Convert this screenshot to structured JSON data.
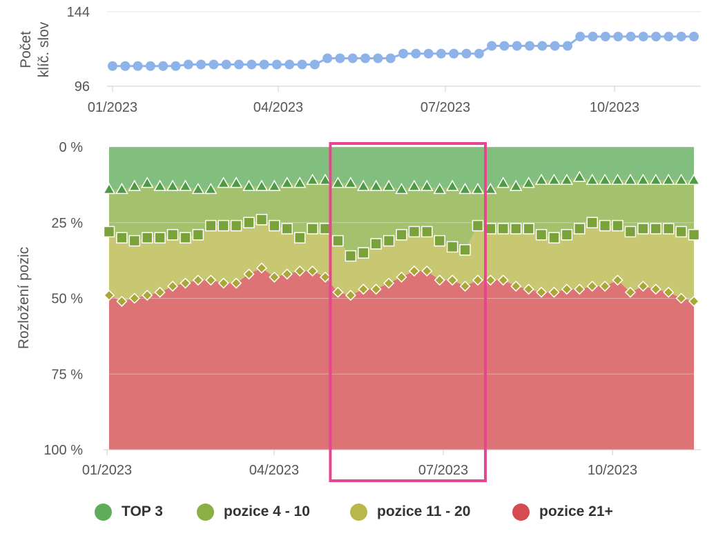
{
  "chart_data": [
    {
      "type": "line",
      "ylabel": [
        "Počet",
        "klíč. slov"
      ],
      "ylim": [
        96,
        144
      ],
      "yticks": [
        96,
        144
      ],
      "xticks": [
        "01/2023",
        "04/2023",
        "07/2023",
        "10/2023"
      ],
      "grid": true,
      "legend": "none",
      "series": [
        {
          "color": "#8db3e8",
          "values": [
            109,
            109,
            109,
            109,
            109,
            109,
            110,
            110,
            110,
            110,
            110,
            110,
            110,
            110,
            110,
            110,
            110,
            114,
            114,
            114,
            114,
            114,
            114,
            117,
            117,
            117,
            117,
            117,
            117,
            117,
            122,
            122,
            122,
            122,
            122,
            122,
            122,
            128,
            128,
            128,
            128,
            128,
            128,
            128,
            128,
            128,
            128
          ]
        }
      ]
    },
    {
      "type": "area",
      "stacked": true,
      "ylabel": "Rozložení pozic",
      "ylim": [
        0,
        100
      ],
      "yticks": [
        "0 %",
        "25 %",
        "50 %",
        "75 %",
        "100 %"
      ],
      "xticks": [
        "01/2023",
        "04/2023",
        "07/2023",
        "10/2023"
      ],
      "grid": true,
      "legend": "bottom-center",
      "highlight": {
        "from_index": 18,
        "to_index": 29,
        "color": "#e6458f"
      },
      "boundaries": [
        {
          "name": "TOP 3",
          "marker": "triangle",
          "values": [
            14,
            14,
            13,
            12,
            13,
            13,
            13,
            14,
            14,
            12,
            12,
            13,
            13,
            13,
            12,
            12,
            11,
            11,
            12,
            12,
            13,
            13,
            13,
            14,
            13,
            13,
            14,
            13,
            14,
            14,
            14,
            12,
            13,
            12,
            11,
            11,
            11,
            10,
            11,
            11,
            11,
            11,
            11,
            11,
            11,
            11,
            11
          ]
        },
        {
          "name": "pozice 4 - 10",
          "marker": "square",
          "values": [
            28,
            30,
            31,
            30,
            30,
            29,
            30,
            29,
            26,
            26,
            26,
            25,
            24,
            26,
            27,
            30,
            27,
            27,
            31,
            36,
            35,
            32,
            31,
            29,
            28,
            28,
            31,
            33,
            34,
            26,
            27,
            27,
            27,
            27,
            29,
            30,
            29,
            27,
            25,
            26,
            26,
            28,
            27,
            27,
            27,
            28,
            29
          ]
        },
        {
          "name": "pozice 11 - 20",
          "marker": "diamond",
          "values": [
            49,
            51,
            50,
            49,
            48,
            46,
            45,
            44,
            44,
            45,
            45,
            42,
            40,
            43,
            42,
            41,
            41,
            43,
            48,
            49,
            47,
            47,
            45,
            43,
            41,
            41,
            44,
            44,
            46,
            44,
            44,
            44,
            46,
            47,
            48,
            48,
            47,
            47,
            46,
            46,
            44,
            48,
            46,
            47,
            48,
            50,
            51
          ]
        }
      ],
      "series": [
        {
          "name": "TOP 3",
          "color": "#5fad5a"
        },
        {
          "name": "pozice 4 - 10",
          "color": "#8aaf45"
        },
        {
          "name": "pozice 11 - 20",
          "color": "#b9b74a"
        },
        {
          "name": "pozice 21+",
          "color": "#d54b50"
        }
      ]
    }
  ]
}
